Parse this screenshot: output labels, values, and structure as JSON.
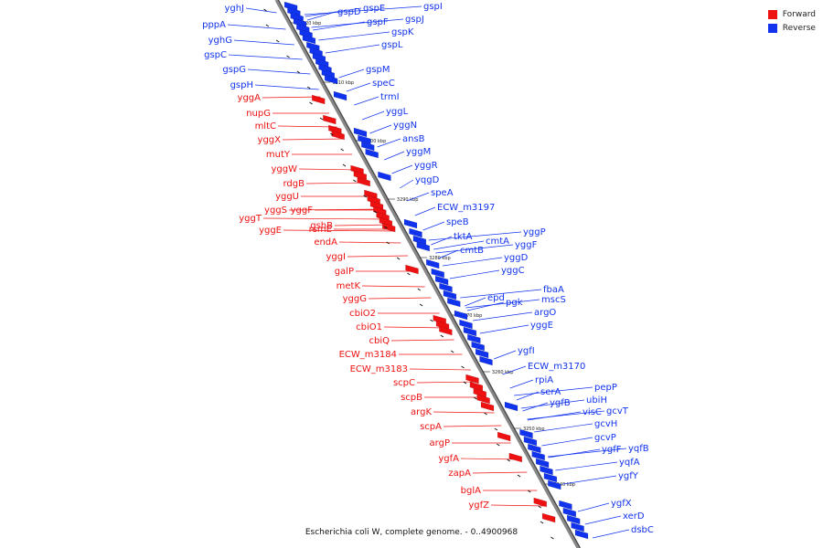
{
  "colors": {
    "forward": "#ee1111",
    "reverse": "#1133ee",
    "axis": "#888888",
    "axis_shadow": "#444444"
  },
  "legend": [
    {
      "label": "Forward",
      "color": "#ee1111"
    },
    {
      "label": "Reverse",
      "color": "#1133ee"
    }
  ],
  "caption": "Escherichia coli W, complete genome. - 0..4900968",
  "kbp_ticks": [
    "3320 kbp",
    "3310 kbp",
    "3300 kbp",
    "3290 kbp",
    "3280 kbp",
    "3270 kbp",
    "3260 kbp",
    "3250 kbp",
    "3240 kbp"
  ],
  "forward_labels": [
    "yggA",
    "nupG",
    "mltC",
    "yggX",
    "mutY",
    "yggW",
    "rdgB",
    "yggU",
    "yggT",
    "yggS",
    "yggF",
    "yggE",
    "gshB",
    "rsmE",
    "endA",
    "yggI",
    "galP",
    "metK",
    "yggG",
    "cbiO2",
    "cbiO1",
    "cbiQ",
    "ECW_m3184",
    "ECW_m3183",
    "scpC",
    "scpB",
    "argK",
    "scpA",
    "argP",
    "ygfA",
    "zapA",
    "bglA",
    "ygfZ"
  ],
  "reverse_labels_left": [
    "yghJ",
    "pppA",
    "yghG",
    "gspC",
    "gspG",
    "gspH"
  ],
  "reverse_labels_right": [
    "gspD",
    "gspE",
    "gspI",
    "gspF",
    "gspJ",
    "gspK",
    "gspL",
    "gspM",
    "speC",
    "trmI",
    "yggL",
    "yggN",
    "ansB",
    "yggM",
    "yggR",
    "yqgD",
    "speA",
    "ECW_m3197",
    "speB",
    "tktA",
    "cmtB",
    "cmtA",
    "yggP",
    "yggF",
    "yggD",
    "yggC",
    "epd",
    "pgk",
    "fbaA",
    "mscS",
    "argO",
    "yggE",
    "ygfI",
    "ECW_m3170",
    "rpiA",
    "serA",
    "ygfB",
    "pepP",
    "ubiH",
    "visC",
    "gcvT",
    "gcvH",
    "gcvP",
    "ygfF",
    "yqfB",
    "yqfA",
    "ygfY",
    "ygfX",
    "xerD",
    "dsbC"
  ]
}
